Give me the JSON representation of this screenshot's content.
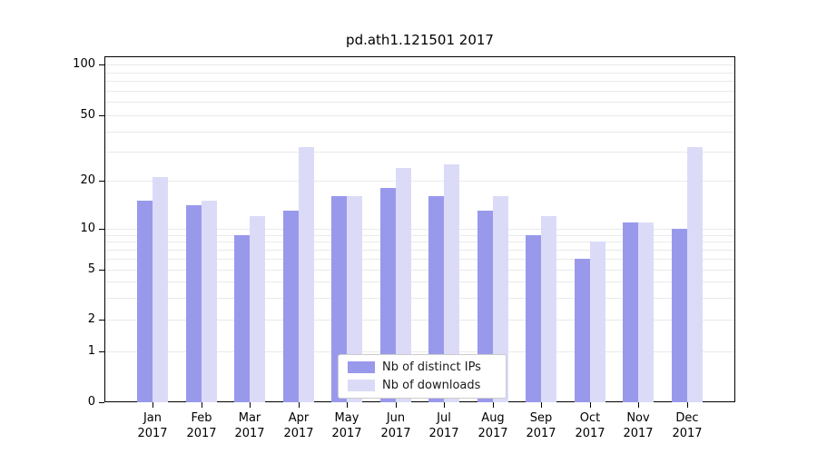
{
  "chart_data": {
    "type": "bar",
    "title": "pd.ath1.121501 2017",
    "yscale": "symlog",
    "ylim": [
      0,
      100
    ],
    "y_ticks": [
      0,
      1,
      2,
      5,
      10,
      20,
      50,
      100
    ],
    "grid": true,
    "legend_position": "lower center",
    "categories": [
      "Jan 2017",
      "Feb 2017",
      "Mar 2017",
      "Apr 2017",
      "May 2017",
      "Jun 2017",
      "Jul 2017",
      "Aug 2017",
      "Sep 2017",
      "Oct 2017",
      "Nov 2017",
      "Dec 2017"
    ],
    "series": [
      {
        "name": "Nb of distinct IPs",
        "color": "#9999ec",
        "values": [
          15,
          14,
          9,
          13,
          16,
          18,
          16,
          13,
          9,
          6,
          11,
          10
        ]
      },
      {
        "name": "Nb of downloads",
        "color": "#dbdbf8",
        "values": [
          21,
          15,
          12,
          32,
          16,
          24,
          25,
          16,
          12,
          8,
          11,
          32
        ]
      }
    ]
  },
  "colors": {
    "grid": "#eaeaea",
    "axis": "#000000",
    "legend_border": "#cccccc"
  }
}
